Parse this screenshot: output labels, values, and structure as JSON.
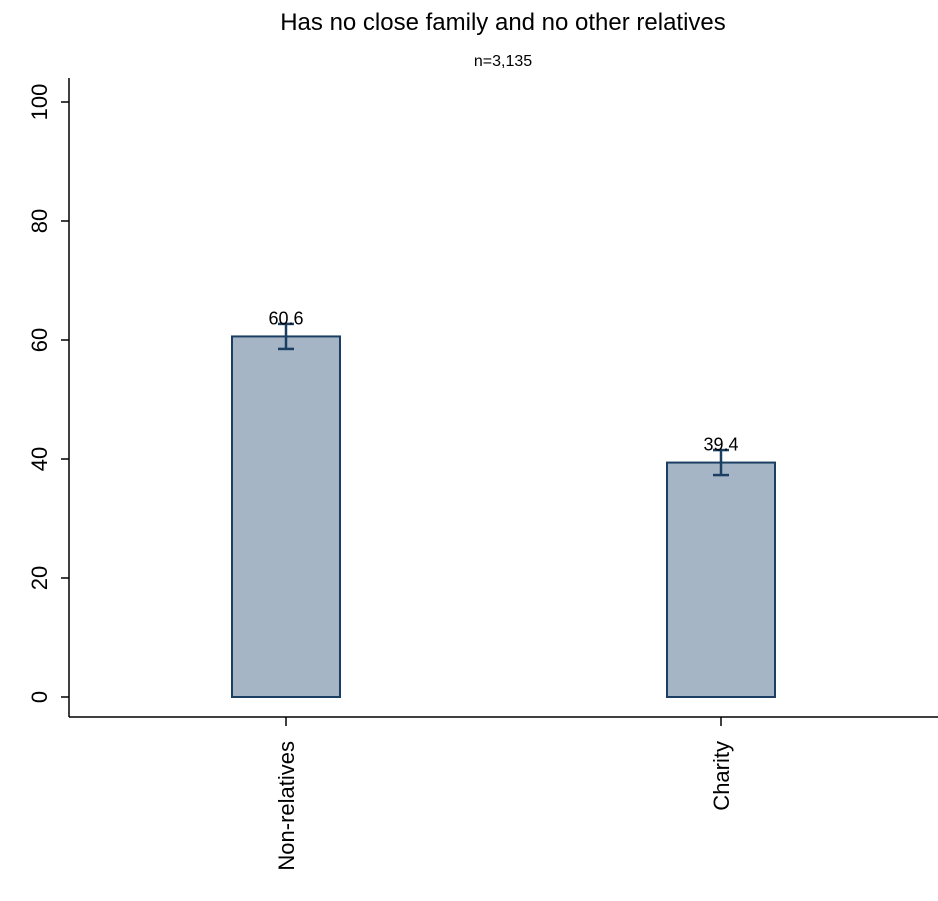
{
  "chart_data": {
    "type": "bar",
    "title": "Has no close family and no other relatives",
    "subtitle": "n=3,135",
    "categories": [
      "Non-relatives",
      "Charity"
    ],
    "values": [
      60.6,
      39.4
    ],
    "value_labels": [
      "60.6",
      "39.4"
    ],
    "error_bars": [
      {
        "low": 58.5,
        "high": 62.7
      },
      {
        "low": 37.3,
        "high": 41.5
      }
    ],
    "xlabel": "",
    "ylabel": "",
    "ylim": [
      0,
      100
    ],
    "yticks": [
      0,
      20,
      40,
      60,
      80,
      100
    ],
    "ytick_labels": [
      "0",
      "20",
      "40",
      "60",
      "80",
      "100"
    ],
    "grid": false,
    "legend": "none",
    "colors": {
      "bar_fill": "#a5b5c6",
      "bar_stroke": "#1b3f63",
      "error_bar": "#1b3f63",
      "axis": "#000000"
    }
  }
}
